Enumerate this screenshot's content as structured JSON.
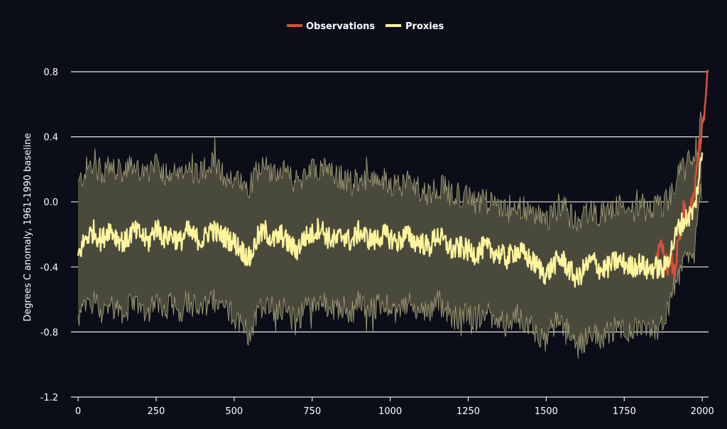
{
  "chart_data": {
    "type": "line",
    "title": "",
    "xlabel": "",
    "ylabel": "Degrees C anomaly, 1961-1990 baseline",
    "xlim": [
      0,
      2020
    ],
    "ylim": [
      -1.2,
      0.8
    ],
    "x_ticks": [
      "0",
      "250",
      "500",
      "750",
      "1000",
      "1250",
      "1500",
      "1750",
      "2000"
    ],
    "y_ticks": [
      "0.8",
      "0.4",
      "0.0",
      "-0.4",
      "-0.8",
      "-1.2"
    ],
    "grid": "horizontal",
    "legend_position": "top-center",
    "series": [
      {
        "name": "Proxies",
        "color": "#fff59d",
        "x": [
          0,
          25,
          50,
          75,
          100,
          125,
          150,
          175,
          200,
          225,
          250,
          275,
          300,
          325,
          350,
          375,
          400,
          425,
          450,
          475,
          500,
          525,
          550,
          575,
          600,
          625,
          650,
          675,
          700,
          725,
          750,
          775,
          800,
          825,
          850,
          875,
          900,
          925,
          950,
          975,
          1000,
          1025,
          1050,
          1075,
          1100,
          1125,
          1150,
          1175,
          1200,
          1225,
          1250,
          1275,
          1300,
          1325,
          1350,
          1375,
          1400,
          1425,
          1450,
          1475,
          1500,
          1525,
          1550,
          1575,
          1600,
          1625,
          1650,
          1675,
          1700,
          1725,
          1750,
          1775,
          1800,
          1825,
          1850,
          1875,
          1900,
          1925,
          1950,
          1975,
          2000
        ],
        "values": [
          -0.33,
          -0.22,
          -0.18,
          -0.24,
          -0.16,
          -0.22,
          -0.25,
          -0.18,
          -0.2,
          -0.25,
          -0.15,
          -0.22,
          -0.2,
          -0.25,
          -0.18,
          -0.22,
          -0.24,
          -0.16,
          -0.2,
          -0.22,
          -0.25,
          -0.3,
          -0.35,
          -0.22,
          -0.18,
          -0.24,
          -0.2,
          -0.26,
          -0.3,
          -0.22,
          -0.2,
          -0.15,
          -0.22,
          -0.24,
          -0.2,
          -0.25,
          -0.18,
          -0.22,
          -0.24,
          -0.2,
          -0.22,
          -0.25,
          -0.2,
          -0.24,
          -0.25,
          -0.28,
          -0.2,
          -0.25,
          -0.3,
          -0.28,
          -0.3,
          -0.32,
          -0.28,
          -0.3,
          -0.32,
          -0.35,
          -0.3,
          -0.32,
          -0.36,
          -0.4,
          -0.45,
          -0.38,
          -0.35,
          -0.42,
          -0.48,
          -0.4,
          -0.36,
          -0.42,
          -0.4,
          -0.36,
          -0.38,
          -0.4,
          -0.38,
          -0.42,
          -0.4,
          -0.42,
          -0.3,
          -0.15,
          -0.1,
          -0.05,
          0.3
        ],
        "upper": [
          0.1,
          0.2,
          0.24,
          0.18,
          0.22,
          0.19,
          0.17,
          0.24,
          0.2,
          0.15,
          0.22,
          0.18,
          0.2,
          0.14,
          0.22,
          0.18,
          0.2,
          0.24,
          0.19,
          0.16,
          0.14,
          0.12,
          0.1,
          0.2,
          0.22,
          0.18,
          0.19,
          0.15,
          0.12,
          0.18,
          0.19,
          0.22,
          0.18,
          0.16,
          0.15,
          0.12,
          0.14,
          0.15,
          0.12,
          0.14,
          0.12,
          0.1,
          0.12,
          0.1,
          0.08,
          0.05,
          0.1,
          0.08,
          0.04,
          0.05,
          0.02,
          0.0,
          0.02,
          -0.02,
          -0.04,
          -0.06,
          -0.02,
          -0.04,
          -0.08,
          -0.08,
          -0.12,
          -0.05,
          -0.02,
          -0.08,
          -0.12,
          -0.08,
          -0.05,
          -0.08,
          -0.06,
          -0.02,
          -0.04,
          -0.06,
          -0.04,
          -0.06,
          -0.02,
          -0.02,
          0.05,
          0.18,
          0.22,
          0.3,
          0.45
        ],
        "lower": [
          -0.72,
          -0.65,
          -0.6,
          -0.68,
          -0.62,
          -0.66,
          -0.68,
          -0.62,
          -0.64,
          -0.68,
          -0.58,
          -0.66,
          -0.62,
          -0.68,
          -0.6,
          -0.65,
          -0.68,
          -0.6,
          -0.64,
          -0.66,
          -0.7,
          -0.75,
          -0.82,
          -0.66,
          -0.62,
          -0.66,
          -0.64,
          -0.7,
          -0.74,
          -0.66,
          -0.62,
          -0.6,
          -0.66,
          -0.68,
          -0.64,
          -0.7,
          -0.6,
          -0.64,
          -0.66,
          -0.62,
          -0.64,
          -0.68,
          -0.62,
          -0.66,
          -0.66,
          -0.68,
          -0.6,
          -0.66,
          -0.72,
          -0.7,
          -0.7,
          -0.72,
          -0.68,
          -0.7,
          -0.72,
          -0.76,
          -0.7,
          -0.72,
          -0.74,
          -0.82,
          -0.86,
          -0.76,
          -0.74,
          -0.82,
          -0.9,
          -0.84,
          -0.78,
          -0.84,
          -0.8,
          -0.76,
          -0.78,
          -0.8,
          -0.78,
          -0.82,
          -0.78,
          -0.76,
          -0.62,
          -0.42,
          -0.36,
          -0.3,
          0.12
        ]
      },
      {
        "name": "Observations",
        "color": "#d94f3a",
        "x": [
          1850,
          1860,
          1870,
          1880,
          1890,
          1900,
          1910,
          1920,
          1930,
          1940,
          1950,
          1960,
          1970,
          1980,
          1990,
          2000,
          2010,
          2018
        ],
        "values": [
          -0.35,
          -0.32,
          -0.28,
          -0.35,
          -0.4,
          -0.35,
          -0.45,
          -0.3,
          -0.2,
          -0.05,
          -0.1,
          -0.05,
          -0.02,
          0.15,
          0.35,
          0.45,
          0.6,
          0.8
        ]
      }
    ]
  },
  "legend": {
    "items": [
      {
        "label": "Observations",
        "color": "#d94f3a"
      },
      {
        "label": "Proxies",
        "color": "#fff59d"
      }
    ]
  },
  "colors": {
    "background": "#0b0d18",
    "band_fill": "#4a4a3c",
    "band_edge": "#a9a57a",
    "grid": "#e8e8e8"
  }
}
